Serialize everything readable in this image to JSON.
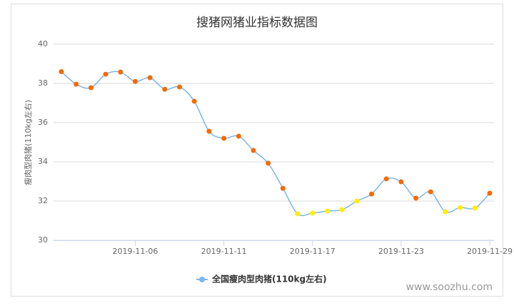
{
  "chart_data": {
    "type": "line",
    "title": "搜猪网猪业指标数据图",
    "y_label": "瘦肉型肉猪(110kg左右)",
    "watermark": "www.soozhu.com",
    "categories": [
      null,
      null,
      null,
      null,
      null,
      "2019-11-06",
      null,
      null,
      null,
      null,
      null,
      "2019-11-11",
      null,
      null,
      null,
      null,
      null,
      "2019-11-17",
      null,
      null,
      null,
      null,
      null,
      "2019-11-23",
      null,
      null,
      null,
      null,
      null,
      "2019-11-29"
    ],
    "series": [
      {
        "name": "全国瘦肉型肉猪(110kg左右)",
        "color": "#7cb5ec",
        "values": [
          38.6,
          37.96,
          37.78,
          38.47,
          38.58,
          38.1,
          38.29,
          37.7,
          37.82,
          37.09,
          35.56,
          35.2,
          35.31,
          34.58,
          33.93,
          32.65,
          31.35,
          31.38,
          31.49,
          31.56,
          32.0,
          32.36,
          33.13,
          32.98,
          32.15,
          32.47,
          31.45,
          31.67,
          31.64,
          32.4
        ],
        "point_colors": [
          "#f56a00",
          "#f56a00",
          "#f56a00",
          "#f56a00",
          "#f56a00",
          "#f56a00",
          "#f56a00",
          "#f56a00",
          "#f56a00",
          "#f56a00",
          "#f56a00",
          "#f56a00",
          "#f56a00",
          "#f56a00",
          "#f56a00",
          "#f56a00",
          "#ffee00",
          "#ffee00",
          "#ffee00",
          "#ffee00",
          "#ffee00",
          "#f56a00",
          "#f56a00",
          "#f56a00",
          "#f56a00",
          "#f56a00",
          "#ffee00",
          "#ffee00",
          "#ffee00",
          "#f56a00"
        ]
      }
    ],
    "ylim": [
      30,
      40
    ],
    "yticks": [
      30,
      32,
      34,
      36,
      38,
      40
    ],
    "grid": true,
    "legend": "bottom"
  }
}
